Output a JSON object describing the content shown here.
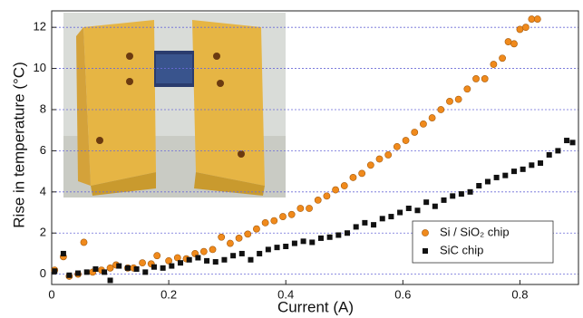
{
  "chart_data": {
    "type": "scatter",
    "xlabel": "Current (A)",
    "ylabel": "Rise in temperature (°C)",
    "xlim": [
      0,
      0.9
    ],
    "ylim": [
      -0.5,
      12.8
    ],
    "xticks": [
      0,
      0.2,
      0.4,
      0.6,
      0.8
    ],
    "yticks": [
      0,
      2,
      4,
      6,
      8,
      10,
      12
    ],
    "grid": true,
    "legend": "lower right",
    "series": [
      {
        "name": "Si / SiO₂ chip",
        "color": "#f08a1c",
        "marker": "circle",
        "x": [
          0.005,
          0.02,
          0.03,
          0.045,
          0.055,
          0.07,
          0.085,
          0.1,
          0.11,
          0.13,
          0.14,
          0.155,
          0.17,
          0.18,
          0.2,
          0.215,
          0.23,
          0.245,
          0.26,
          0.275,
          0.29,
          0.305,
          0.32,
          0.335,
          0.35,
          0.365,
          0.38,
          0.395,
          0.41,
          0.425,
          0.44,
          0.455,
          0.47,
          0.485,
          0.5,
          0.515,
          0.53,
          0.545,
          0.56,
          0.575,
          0.59,
          0.605,
          0.62,
          0.635,
          0.65,
          0.665,
          0.68,
          0.695,
          0.71,
          0.725,
          0.74,
          0.755,
          0.77,
          0.78,
          0.79,
          0.8,
          0.81,
          0.82,
          0.83
        ],
        "y": [
          0.2,
          0.85,
          -0.1,
          0,
          1.55,
          0.1,
          0.2,
          0.3,
          0.45,
          0.3,
          0.3,
          0.55,
          0.5,
          0.9,
          0.65,
          0.8,
          0.75,
          1.0,
          1.1,
          1.2,
          1.8,
          1.5,
          1.75,
          1.95,
          2.2,
          2.5,
          2.6,
          2.8,
          2.9,
          3.2,
          3.2,
          3.6,
          3.8,
          4.1,
          4.3,
          4.7,
          4.9,
          5.3,
          5.6,
          5.8,
          6.2,
          6.5,
          6.9,
          7.3,
          7.6,
          8.0,
          8.4,
          8.5,
          9.0,
          9.5,
          9.5,
          10.2,
          10.5,
          11.3,
          11.2,
          11.9,
          12.0,
          12.4,
          12.4
        ]
      },
      {
        "name": "SiC chip",
        "color": "#111111",
        "marker": "square",
        "x": [
          0.005,
          0.02,
          0.03,
          0.045,
          0.06,
          0.075,
          0.09,
          0.1,
          0.115,
          0.13,
          0.145,
          0.16,
          0.175,
          0.19,
          0.205,
          0.22,
          0.235,
          0.25,
          0.265,
          0.28,
          0.295,
          0.31,
          0.325,
          0.34,
          0.355,
          0.37,
          0.385,
          0.4,
          0.415,
          0.43,
          0.445,
          0.46,
          0.475,
          0.49,
          0.505,
          0.52,
          0.535,
          0.55,
          0.565,
          0.58,
          0.595,
          0.61,
          0.625,
          0.64,
          0.655,
          0.67,
          0.685,
          0.7,
          0.715,
          0.73,
          0.745,
          0.76,
          0.775,
          0.79,
          0.805,
          0.82,
          0.835,
          0.85,
          0.865,
          0.88,
          0.89
        ],
        "y": [
          0.15,
          1.0,
          -0.05,
          0.05,
          0.1,
          0.25,
          0.1,
          -0.3,
          0.4,
          0.3,
          0.25,
          0.1,
          0.35,
          0.3,
          0.4,
          0.55,
          0.7,
          0.8,
          0.65,
          0.6,
          0.7,
          0.9,
          1.0,
          0.7,
          1.0,
          1.2,
          1.3,
          1.35,
          1.5,
          1.6,
          1.55,
          1.75,
          1.8,
          1.9,
          2.0,
          2.3,
          2.5,
          2.4,
          2.7,
          2.8,
          3.0,
          3.2,
          3.1,
          3.5,
          3.3,
          3.6,
          3.8,
          3.9,
          4.0,
          4.3,
          4.5,
          4.7,
          4.8,
          5.0,
          5.1,
          5.3,
          5.4,
          5.8,
          6.0,
          6.5,
          6.4
        ]
      }
    ]
  }
}
